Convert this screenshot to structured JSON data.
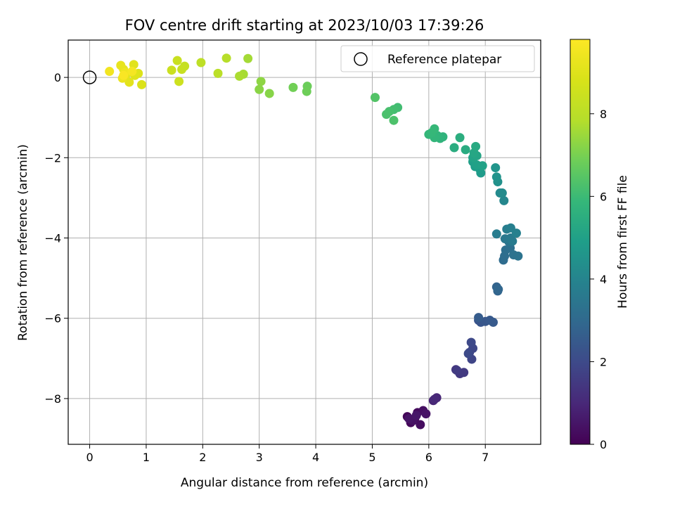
{
  "chart_data": {
    "type": "scatter",
    "title": "FOV centre drift starting at 2023/10/03 17:39:26",
    "xlabel": "Angular distance from reference (arcmin)",
    "ylabel": "Rotation from reference (arcmin)",
    "xlim": [
      -0.38,
      7.98
    ],
    "ylim": [
      -9.14,
      0.93
    ],
    "xticks": [
      0,
      1,
      2,
      3,
      4,
      5,
      6,
      7
    ],
    "yticks": [
      0,
      -2,
      -4,
      -6,
      -8
    ],
    "grid": true,
    "legend": {
      "placement": "top-right",
      "entries": [
        "Reference platepar"
      ]
    },
    "reference_point": {
      "x": 0,
      "y": 0,
      "label": "Reference platepar"
    },
    "colorbar": {
      "label": "Hours from first FF file",
      "min": 0,
      "max": 9.8,
      "ticks": [
        0,
        2,
        4,
        6,
        8
      ],
      "colormap": "viridis"
    },
    "points": [
      {
        "x": 5.62,
        "y": -8.45,
        "h": 0.1
      },
      {
        "x": 5.68,
        "y": -8.6,
        "h": 0.15
      },
      {
        "x": 5.75,
        "y": -8.5,
        "h": 0.2
      },
      {
        "x": 5.8,
        "y": -8.35,
        "h": 0.25
      },
      {
        "x": 5.85,
        "y": -8.65,
        "h": 0.3
      },
      {
        "x": 5.9,
        "y": -8.3,
        "h": 0.35
      },
      {
        "x": 5.72,
        "y": -8.55,
        "h": 0.4
      },
      {
        "x": 5.95,
        "y": -8.38,
        "h": 0.45
      },
      {
        "x": 5.65,
        "y": -8.5,
        "h": 0.5
      },
      {
        "x": 5.78,
        "y": -8.42,
        "h": 0.55
      },
      {
        "x": 6.08,
        "y": -8.05,
        "h": 0.9
      },
      {
        "x": 6.14,
        "y": -7.98,
        "h": 0.95
      },
      {
        "x": 6.1,
        "y": -8.02,
        "h": 1.0
      },
      {
        "x": 6.48,
        "y": -7.28,
        "h": 1.4
      },
      {
        "x": 6.55,
        "y": -7.38,
        "h": 1.45
      },
      {
        "x": 6.62,
        "y": -7.35,
        "h": 1.5
      },
      {
        "x": 6.5,
        "y": -7.3,
        "h": 1.55
      },
      {
        "x": 6.72,
        "y": -6.85,
        "h": 1.8
      },
      {
        "x": 6.76,
        "y": -7.02,
        "h": 1.85
      },
      {
        "x": 6.78,
        "y": -6.75,
        "h": 1.9
      },
      {
        "x": 6.75,
        "y": -6.6,
        "h": 1.95
      },
      {
        "x": 6.7,
        "y": -6.88,
        "h": 2.0
      },
      {
        "x": 6.88,
        "y": -6.05,
        "h": 2.3
      },
      {
        "x": 6.92,
        "y": -6.1,
        "h": 2.35
      },
      {
        "x": 7.0,
        "y": -6.08,
        "h": 2.4
      },
      {
        "x": 7.08,
        "y": -6.05,
        "h": 2.45
      },
      {
        "x": 7.14,
        "y": -6.1,
        "h": 2.5
      },
      {
        "x": 6.88,
        "y": -5.98,
        "h": 2.55
      },
      {
        "x": 7.2,
        "y": -5.22,
        "h": 2.8
      },
      {
        "x": 7.22,
        "y": -5.32,
        "h": 2.85
      },
      {
        "x": 7.23,
        "y": -5.28,
        "h": 2.9
      },
      {
        "x": 7.32,
        "y": -4.55,
        "h": 3.1
      },
      {
        "x": 7.34,
        "y": -4.45,
        "h": 3.15
      },
      {
        "x": 7.36,
        "y": -4.3,
        "h": 3.2
      },
      {
        "x": 7.44,
        "y": -4.25,
        "h": 3.25
      },
      {
        "x": 7.5,
        "y": -4.42,
        "h": 3.3
      },
      {
        "x": 7.58,
        "y": -4.45,
        "h": 3.35
      },
      {
        "x": 7.42,
        "y": -4.1,
        "h": 3.4
      },
      {
        "x": 7.35,
        "y": -4.02,
        "h": 3.55
      },
      {
        "x": 7.45,
        "y": -4.0,
        "h": 3.6
      },
      {
        "x": 7.48,
        "y": -4.08,
        "h": 3.65
      },
      {
        "x": 7.2,
        "y": -3.9,
        "h": 3.7
      },
      {
        "x": 7.38,
        "y": -3.78,
        "h": 3.75
      },
      {
        "x": 7.45,
        "y": -3.75,
        "h": 3.8
      },
      {
        "x": 7.55,
        "y": -3.88,
        "h": 3.85
      },
      {
        "x": 7.33,
        "y": -3.07,
        "h": 4.1
      },
      {
        "x": 7.26,
        "y": -2.88,
        "h": 4.2
      },
      {
        "x": 7.3,
        "y": -2.88,
        "h": 4.25
      },
      {
        "x": 7.22,
        "y": -2.6,
        "h": 4.45
      },
      {
        "x": 7.2,
        "y": -2.48,
        "h": 4.5
      },
      {
        "x": 7.18,
        "y": -2.25,
        "h": 4.6
      },
      {
        "x": 6.92,
        "y": -2.38,
        "h": 4.8
      },
      {
        "x": 6.9,
        "y": -2.28,
        "h": 4.85
      },
      {
        "x": 6.82,
        "y": -2.22,
        "h": 4.9
      },
      {
        "x": 6.78,
        "y": -2.1,
        "h": 4.95
      },
      {
        "x": 6.85,
        "y": -2.18,
        "h": 5.0
      },
      {
        "x": 6.95,
        "y": -2.2,
        "h": 5.05
      },
      {
        "x": 6.78,
        "y": -2.0,
        "h": 5.1
      },
      {
        "x": 6.85,
        "y": -1.95,
        "h": 5.15
      },
      {
        "x": 6.8,
        "y": -1.88,
        "h": 5.2
      },
      {
        "x": 6.83,
        "y": -1.72,
        "h": 5.35
      },
      {
        "x": 6.65,
        "y": -1.8,
        "h": 5.4
      },
      {
        "x": 6.45,
        "y": -1.75,
        "h": 5.45
      },
      {
        "x": 6.55,
        "y": -1.5,
        "h": 5.5
      },
      {
        "x": 6.25,
        "y": -1.48,
        "h": 5.7
      },
      {
        "x": 6.2,
        "y": -1.52,
        "h": 5.72
      },
      {
        "x": 6.15,
        "y": -1.45,
        "h": 5.75
      },
      {
        "x": 6.1,
        "y": -1.5,
        "h": 5.8
      },
      {
        "x": 6.0,
        "y": -1.42,
        "h": 5.85
      },
      {
        "x": 6.05,
        "y": -1.38,
        "h": 5.88
      },
      {
        "x": 6.1,
        "y": -1.28,
        "h": 5.9
      },
      {
        "x": 5.45,
        "y": -0.75,
        "h": 6.1
      },
      {
        "x": 5.38,
        "y": -0.8,
        "h": 6.15
      },
      {
        "x": 5.3,
        "y": -0.85,
        "h": 6.2
      },
      {
        "x": 5.25,
        "y": -0.92,
        "h": 6.25
      },
      {
        "x": 5.38,
        "y": -1.07,
        "h": 6.3
      },
      {
        "x": 5.05,
        "y": -0.5,
        "h": 6.4
      },
      {
        "x": 3.85,
        "y": -0.22,
        "h": 6.8
      },
      {
        "x": 3.84,
        "y": -0.35,
        "h": 6.85
      },
      {
        "x": 3.6,
        "y": -0.25,
        "h": 6.9
      },
      {
        "x": 3.18,
        "y": -0.4,
        "h": 7.2
      },
      {
        "x": 3.0,
        "y": -0.3,
        "h": 7.25
      },
      {
        "x": 3.03,
        "y": -0.1,
        "h": 7.3
      },
      {
        "x": 2.8,
        "y": 0.47,
        "h": 7.6
      },
      {
        "x": 2.72,
        "y": 0.08,
        "h": 7.65
      },
      {
        "x": 2.65,
        "y": 0.03,
        "h": 7.7
      },
      {
        "x": 2.42,
        "y": 0.48,
        "h": 7.9
      },
      {
        "x": 2.27,
        "y": 0.1,
        "h": 8.0
      },
      {
        "x": 1.97,
        "y": 0.37,
        "h": 8.1
      },
      {
        "x": 1.68,
        "y": 0.28,
        "h": 8.3
      },
      {
        "x": 1.63,
        "y": 0.2,
        "h": 8.35
      },
      {
        "x": 1.55,
        "y": 0.42,
        "h": 8.4
      },
      {
        "x": 1.45,
        "y": 0.18,
        "h": 8.45
      },
      {
        "x": 1.58,
        "y": -0.1,
        "h": 8.5
      },
      {
        "x": 0.92,
        "y": -0.18,
        "h": 8.9
      },
      {
        "x": 0.86,
        "y": 0.1,
        "h": 8.95
      },
      {
        "x": 0.8,
        "y": 0.05,
        "h": 9.0
      },
      {
        "x": 0.78,
        "y": 0.32,
        "h": 9.05
      },
      {
        "x": 0.7,
        "y": -0.12,
        "h": 9.1
      },
      {
        "x": 0.65,
        "y": 0.08,
        "h": 9.15
      },
      {
        "x": 0.6,
        "y": 0.2,
        "h": 9.2
      },
      {
        "x": 0.55,
        "y": 0.3,
        "h": 9.25
      },
      {
        "x": 0.58,
        "y": -0.02,
        "h": 9.3
      },
      {
        "x": 0.62,
        "y": 0.12,
        "h": 9.4
      },
      {
        "x": 0.35,
        "y": 0.15,
        "h": 9.5
      },
      {
        "x": 0.75,
        "y": 0.15,
        "h": 9.6
      },
      {
        "x": 0.6,
        "y": 0.05,
        "h": 9.7
      }
    ]
  }
}
